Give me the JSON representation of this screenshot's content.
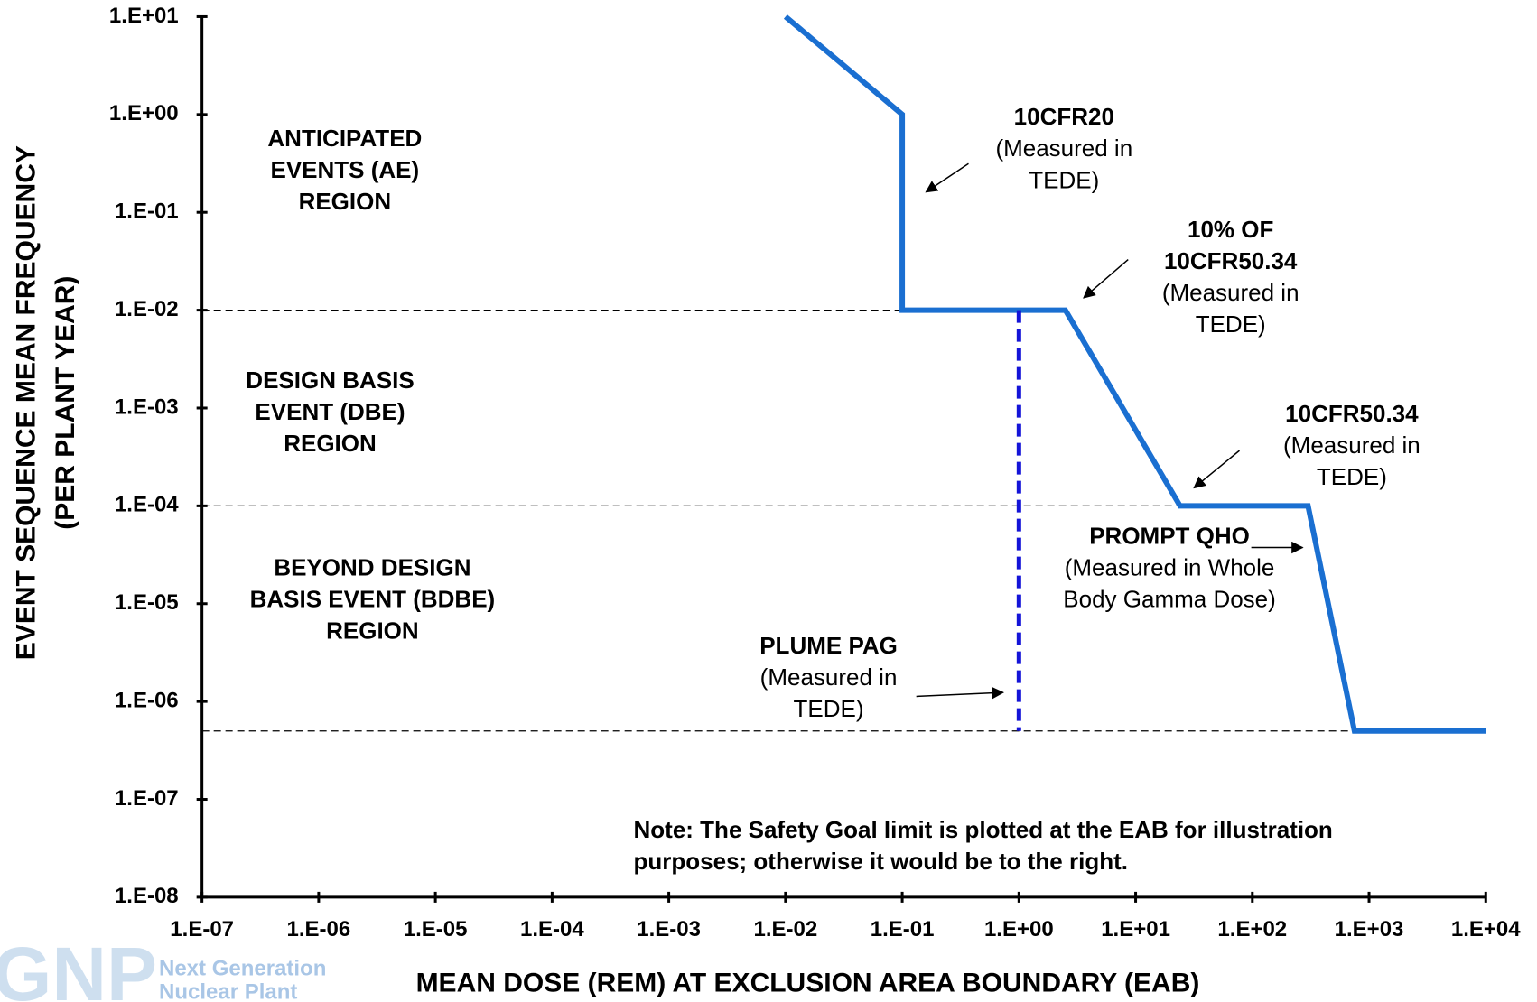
{
  "chart_data": {
    "type": "line",
    "xlabel": "MEAN DOSE (REM) AT EXCLUSION AREA BOUNDARY (EAB)",
    "ylabel": [
      "EVENT SEQUENCE MEAN FREQUENCY",
      "(PER PLANT YEAR)"
    ],
    "xscale": "log",
    "yscale": "log",
    "xlim": [
      1e-07,
      10000
    ],
    "ylim": [
      1e-08,
      10
    ],
    "xticks": [
      {
        "value": 1e-07,
        "label": "1.E-07"
      },
      {
        "value": 1e-06,
        "label": "1.E-06"
      },
      {
        "value": 1e-05,
        "label": "1.E-05"
      },
      {
        "value": 0.0001,
        "label": "1.E-04"
      },
      {
        "value": 0.001,
        "label": "1.E-03"
      },
      {
        "value": 0.01,
        "label": "1.E-02"
      },
      {
        "value": 0.1,
        "label": "1.E-01"
      },
      {
        "value": 1,
        "label": "1.E+00"
      },
      {
        "value": 10,
        "label": "1.E+01"
      },
      {
        "value": 100,
        "label": "1.E+02"
      },
      {
        "value": 1000,
        "label": "1.E+03"
      },
      {
        "value": 10000,
        "label": "1.E+04"
      }
    ],
    "yticks": [
      {
        "value": 10,
        "label": "1.E+01"
      },
      {
        "value": 1,
        "label": "1.E+00"
      },
      {
        "value": 0.1,
        "label": "1.E-01"
      },
      {
        "value": 0.01,
        "label": "1.E-02"
      },
      {
        "value": 0.001,
        "label": "1.E-03"
      },
      {
        "value": 0.0001,
        "label": "1.E-04"
      },
      {
        "value": 1e-05,
        "label": "1.E-05"
      },
      {
        "value": 1e-06,
        "label": "1.E-06"
      },
      {
        "value": 1e-07,
        "label": "1.E-07"
      },
      {
        "value": 1e-08,
        "label": "1.E-08"
      }
    ],
    "series": [
      {
        "color": "#1a6fd1",
        "dashed": false,
        "x": [
          0.01,
          0.1,
          0.1,
          2.5,
          24,
          300,
          750,
          10000
        ],
        "values": [
          10,
          1,
          0.01,
          0.01,
          0.0001,
          0.0001,
          5e-07,
          5e-07
        ]
      },
      {
        "color": "#1414d8",
        "dashed": true,
        "x": [
          1,
          1
        ],
        "values": [
          0.01,
          5e-07
        ]
      }
    ],
    "reference_lines": [
      {
        "y": 0.01,
        "x": [
          1e-07,
          0.1
        ]
      },
      {
        "y": 0.0001,
        "x": [
          1e-07,
          24
        ]
      },
      {
        "y": 5e-07,
        "x": [
          1e-07,
          750
        ]
      }
    ],
    "annotations": [
      {
        "bold": [
          "ANTICIPATED",
          "EVENTS (AE)",
          "REGION"
        ],
        "text": []
      },
      {
        "bold": [
          "DESIGN BASIS",
          "EVENT (DBE)",
          "REGION"
        ],
        "text": []
      },
      {
        "bold": [
          "BEYOND DESIGN",
          "BASIS EVENT (BDBE)",
          "REGION"
        ],
        "text": []
      },
      {
        "bold": [
          "10CFR20"
        ],
        "text": [
          "(Measured in",
          "TEDE)"
        ]
      },
      {
        "bold": [
          "10% OF",
          "10CFR50.34"
        ],
        "text": [
          "(Measured in",
          "TEDE)"
        ]
      },
      {
        "bold": [
          "10CFR50.34"
        ],
        "text": [
          "(Measured in",
          "TEDE)"
        ]
      },
      {
        "bold": [
          "PROMPT QHO"
        ],
        "text": [
          "(Measured in Whole",
          "Body Gamma Dose)"
        ]
      },
      {
        "bold": [
          "PLUME PAG"
        ],
        "text": [
          "(Measured in",
          "TEDE)"
        ]
      },
      {
        "bold": [
          "Note:  The Safety Goal limit is plotted at the EAB for illustration",
          "purposes; otherwise it would be to the right."
        ],
        "text": []
      }
    ],
    "logo": {
      "mark": "GNP",
      "lines": [
        "Next Generation",
        "Nuclear Plant"
      ]
    }
  }
}
